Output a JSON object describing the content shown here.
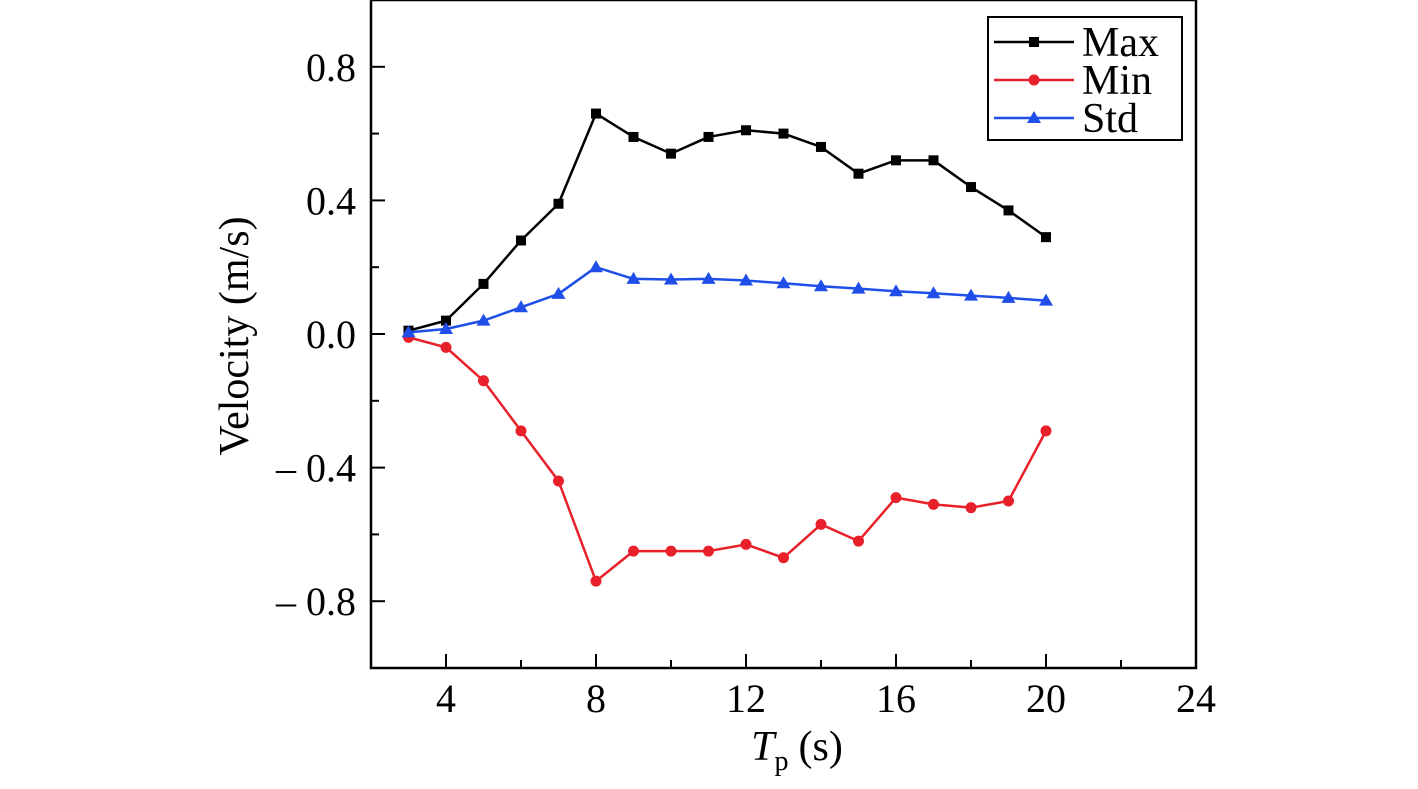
{
  "chart_data": {
    "type": "line",
    "xlabel": {
      "symbol": "T",
      "subscript": "p",
      "unit": "(s)"
    },
    "ylabel": "Velocity (m/s)",
    "xlim": [
      2,
      24
    ],
    "ylim": [
      -1.0,
      1.0
    ],
    "x_ticks": [
      4,
      8,
      12,
      16,
      20,
      24
    ],
    "x_tick_labels": [
      "4",
      "8",
      "12",
      "16",
      "20",
      "24"
    ],
    "y_ticks": [
      0.8,
      0.4,
      0.0,
      -0.4,
      -0.8
    ],
    "y_tick_labels": [
      "0.8",
      "0.4",
      "0.0",
      "– 0.4",
      "– 0.8"
    ],
    "grid": false,
    "legend_position": "top-right",
    "x": [
      3,
      4,
      5,
      6,
      7,
      8,
      9,
      10,
      11,
      12,
      13,
      14,
      15,
      16,
      17,
      18,
      19,
      20
    ],
    "series": [
      {
        "name": "Max",
        "color": "#000000",
        "marker": "square",
        "values": [
          0.01,
          0.04,
          0.15,
          0.28,
          0.39,
          0.66,
          0.59,
          0.54,
          0.59,
          0.61,
          0.6,
          0.56,
          0.48,
          0.52,
          0.52,
          0.44,
          0.37,
          0.29
        ]
      },
      {
        "name": "Min",
        "color": "#e8202a",
        "marker": "circle",
        "values": [
          -0.01,
          -0.04,
          -0.14,
          -0.29,
          -0.44,
          -0.74,
          -0.65,
          -0.65,
          -0.65,
          -0.63,
          -0.67,
          -0.57,
          -0.62,
          -0.49,
          -0.51,
          -0.52,
          -0.5,
          -0.29
        ]
      },
      {
        "name": "Std",
        "color": "#1f4fe8",
        "marker": "triangle",
        "values": [
          0.005,
          0.015,
          0.04,
          0.08,
          0.12,
          0.2,
          0.165,
          0.163,
          0.165,
          0.16,
          0.152,
          0.143,
          0.136,
          0.128,
          0.122,
          0.115,
          0.108,
          0.1
        ]
      }
    ]
  }
}
